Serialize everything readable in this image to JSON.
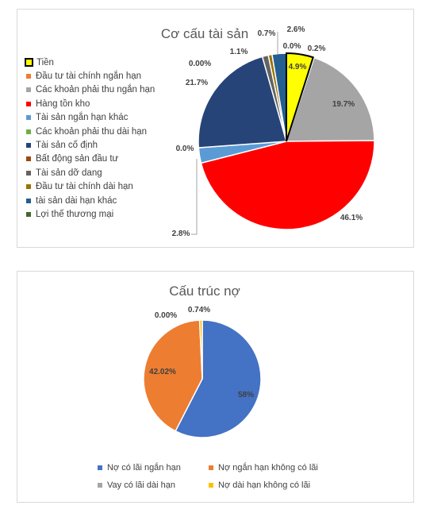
{
  "charts": [
    {
      "id": "asset",
      "title": "Cơ cấu tài sản",
      "type": "pie",
      "series": [
        {
          "name": "Tiền",
          "value": 4.9,
          "label": "4.9%",
          "color": "#FFFF00",
          "highlight": true
        },
        {
          "name": "Đầu tư tài chính ngắn hạn",
          "value": 0.2,
          "label": "0.2%",
          "color": "#ED7D31"
        },
        {
          "name": "Các khoản phải thu ngắn hạn",
          "value": 19.7,
          "label": "19.7%",
          "color": "#A5A5A5"
        },
        {
          "name": "Hàng tồn kho",
          "value": 46.1,
          "label": "46.1%",
          "color": "#FF0000"
        },
        {
          "name": "Tài sản ngắn hạn khác",
          "value": 2.8,
          "label": "2.8%",
          "color": "#5B9BD5"
        },
        {
          "name": "Các khoản phải thu dài hạn",
          "value": 0.0,
          "label": "0.0%",
          "color": "#70AD47"
        },
        {
          "name": "Tài sản cố định",
          "value": 21.7,
          "label": "21.7%",
          "color": "#264478"
        },
        {
          "name": "Bất động sản đầu tư",
          "value": 0.0,
          "label": "0.00%",
          "color": "#9E480E"
        },
        {
          "name": "Tài sản dỡ dang",
          "value": 1.1,
          "label": "1.1%",
          "color": "#636363"
        },
        {
          "name": "Đầu tư tài chính dài  hạn",
          "value": 0.7,
          "label": "0.7%",
          "color": "#997300"
        },
        {
          "name": "tài sản dài hạn khác",
          "value": 2.6,
          "label": "2.6%",
          "color": "#255E91"
        },
        {
          "name": "Lợi thế thương mại",
          "value": 0.0,
          "label": "0.0%",
          "color": "#43682B"
        }
      ]
    },
    {
      "id": "debt",
      "title": "Cấu trúc nợ",
      "type": "pie",
      "series": [
        {
          "name": "Nợ có lãi ngắn hạn",
          "value": 58,
          "label": "58%",
          "color": "#4472C4"
        },
        {
          "name": "Nợ ngắn hạn không có lãi",
          "value": 42.02,
          "label": "42.02%",
          "color": "#ED7D31"
        },
        {
          "name": "Vay  có lãi dài hạn",
          "value": 0.0,
          "label": "0.00%",
          "color": "#A5A5A5"
        },
        {
          "name": "Nợ dài hạn không có lãi",
          "value": 0.74,
          "label": "0.74%",
          "color": "#FFC000"
        }
      ]
    }
  ]
}
